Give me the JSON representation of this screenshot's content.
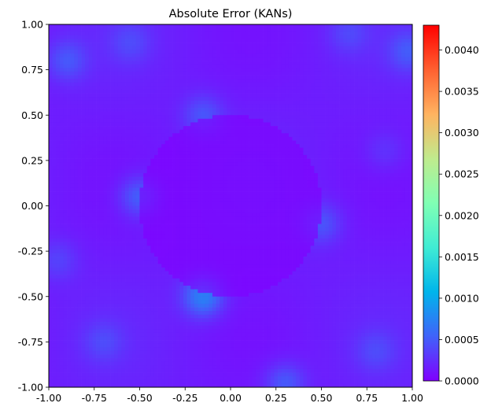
{
  "chart_data": {
    "type": "heatmap",
    "title": "Absolute Error (KANs)",
    "xlabel": "",
    "ylabel": "",
    "xlim": [
      -1.0,
      1.0
    ],
    "ylim": [
      -1.0,
      1.0
    ],
    "x_ticks": [
      "-1.00",
      "-0.75",
      "-0.50",
      "-0.25",
      "0.00",
      "0.25",
      "0.50",
      "0.75",
      "1.00"
    ],
    "y_ticks": [
      "1.00",
      "0.75",
      "0.50",
      "0.25",
      "0.00",
      "-0.25",
      "-0.50",
      "-0.75",
      "-1.00"
    ],
    "colormap": "rainbow",
    "grid": false,
    "colorbar": {
      "min": 0.0,
      "max": 0.0043,
      "ticks": [
        "0.0040",
        "0.0035",
        "0.0030",
        "0.0025",
        "0.0020",
        "0.0015",
        "0.0010",
        "0.0005",
        "0.0000"
      ],
      "colors": [
        "#8000ff",
        "#4062fa",
        "#00b5eb",
        "#40ecd4",
        "#80ffb4",
        "#c0eb8d",
        "#ffb360",
        "#ff6030",
        "#ff0000"
      ]
    },
    "field": {
      "grid_resolution": [
        100,
        100
      ],
      "circle_center": [
        0.0,
        0.0
      ],
      "circle_radius": 0.5,
      "background_value": 0.0001,
      "max_observed_value": 0.0007,
      "hotspots": [
        {
          "x": -0.15,
          "y": -0.5,
          "value": 0.0007
        },
        {
          "x": -0.5,
          "y": 0.05,
          "value": 0.0005
        },
        {
          "x": 0.5,
          "y": -0.1,
          "value": 0.0004
        },
        {
          "x": -0.15,
          "y": 0.5,
          "value": 0.0004
        },
        {
          "x": -0.9,
          "y": 0.8,
          "value": 0.0004
        },
        {
          "x": 0.98,
          "y": 0.85,
          "value": 0.0004
        },
        {
          "x": 0.3,
          "y": -0.98,
          "value": 0.00045
        },
        {
          "x": -0.55,
          "y": 0.9,
          "value": 0.0003
        },
        {
          "x": 0.65,
          "y": 0.95,
          "value": 0.0003
        },
        {
          "x": -0.95,
          "y": -0.3,
          "value": 0.0003
        },
        {
          "x": 0.8,
          "y": -0.8,
          "value": 0.0003
        },
        {
          "x": -0.7,
          "y": -0.75,
          "value": 0.0003
        },
        {
          "x": 0.85,
          "y": 0.3,
          "value": 0.00025
        }
      ]
    }
  }
}
